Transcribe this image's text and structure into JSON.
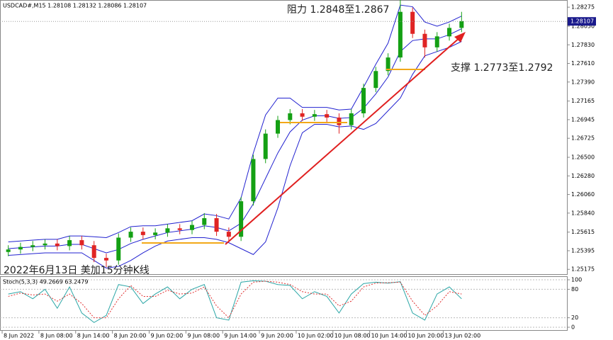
{
  "chart_data": [
    {
      "type": "candlestick",
      "title": "USDCAD#,M15 1.28108 1.28132 1.28086 1.28107",
      "annotations": [
        "阻力 1.2848至1.2867",
        "支撑 1.2773至1.2792",
        "2022年6月13日 美加15分钟K线"
      ],
      "x": [
        1,
        3,
        5,
        7,
        9,
        11,
        13,
        15,
        17,
        19,
        21,
        23,
        25,
        27,
        29,
        31,
        33,
        35,
        37,
        39,
        41,
        43,
        45,
        47,
        49,
        51,
        53,
        55,
        57,
        59,
        61,
        63,
        65,
        67,
        69,
        71,
        73,
        75
      ],
      "open": [
        1.2538,
        1.2541,
        1.2544,
        1.2546,
        1.2548,
        1.2545,
        1.2552,
        1.2546,
        1.2531,
        1.2528,
        1.2555,
        1.2562,
        1.2558,
        1.2561,
        1.2566,
        1.2564,
        1.257,
        1.2578,
        1.2562,
        1.2556,
        1.2598,
        1.2648,
        1.2678,
        1.2694,
        1.2702,
        1.2698,
        1.2701,
        1.2697,
        1.2688,
        1.2702,
        1.2732,
        1.2752,
        1.2768,
        1.2822,
        1.2796,
        1.278,
        1.2793,
        1.2803
      ],
      "high": [
        1.2546,
        1.2549,
        1.2551,
        1.2553,
        1.2553,
        1.2557,
        1.2557,
        1.2551,
        1.2536,
        1.256,
        1.2567,
        1.2567,
        1.2566,
        1.2571,
        1.2571,
        1.2575,
        1.2584,
        1.2583,
        1.2567,
        1.2603,
        1.2653,
        1.2683,
        1.2699,
        1.2707,
        1.2707,
        1.2706,
        1.2706,
        1.2702,
        1.2707,
        1.2737,
        1.2757,
        1.2773,
        1.284,
        1.2827,
        1.2801,
        1.2798,
        1.2808,
        1.2822
      ],
      "low": [
        1.2533,
        1.2536,
        1.2539,
        1.2541,
        1.254,
        1.254,
        1.2541,
        1.2526,
        1.252,
        1.2523,
        1.255,
        1.2553,
        1.2553,
        1.2556,
        1.2559,
        1.2559,
        1.2565,
        1.2557,
        1.255,
        1.2551,
        1.2593,
        1.2643,
        1.2673,
        1.2689,
        1.2693,
        1.2693,
        1.2692,
        1.2678,
        1.2683,
        1.2697,
        1.2727,
        1.2747,
        1.2763,
        1.2791,
        1.2768,
        1.2775,
        1.2788,
        1.2798
      ],
      "close": [
        1.2541,
        1.2544,
        1.2546,
        1.2548,
        1.2545,
        1.2552,
        1.2546,
        1.2531,
        1.2528,
        1.2555,
        1.2562,
        1.2558,
        1.2561,
        1.2566,
        1.2564,
        1.257,
        1.2578,
        1.2562,
        1.2556,
        1.2598,
        1.2648,
        1.2678,
        1.2694,
        1.2702,
        1.2698,
        1.2701,
        1.2697,
        1.2688,
        1.2702,
        1.2732,
        1.2752,
        1.2768,
        1.2822,
        1.2796,
        1.278,
        1.2793,
        1.2803,
        1.2811
      ],
      "up_color": "#14a014",
      "down_color": "#e02424",
      "bands": {
        "color": "#2222d0",
        "upper": [
          1.255,
          1.2551,
          1.2552,
          1.2553,
          1.2553,
          1.2557,
          1.2557,
          1.2556,
          1.2555,
          1.2561,
          1.2568,
          1.2569,
          1.2569,
          1.2571,
          1.2573,
          1.2575,
          1.2583,
          1.2581,
          1.2577,
          1.2602,
          1.2655,
          1.27,
          1.272,
          1.272,
          1.2709,
          1.2709,
          1.2709,
          1.2706,
          1.2707,
          1.2733,
          1.276,
          1.2785,
          1.283,
          1.2828,
          1.281,
          1.2805,
          1.281,
          1.2817
        ],
        "middle": [
          1.2542,
          1.2543,
          1.2544,
          1.2545,
          1.2545,
          1.2547,
          1.2547,
          1.2542,
          1.2537,
          1.2541,
          1.2548,
          1.2553,
          1.2557,
          1.2561,
          1.2563,
          1.2565,
          1.2569,
          1.2567,
          1.2563,
          1.2572,
          1.2595,
          1.2625,
          1.2655,
          1.268,
          1.2694,
          1.2699,
          1.2699,
          1.2696,
          1.2697,
          1.2708,
          1.2725,
          1.2745,
          1.2775,
          1.2788,
          1.279,
          1.279,
          1.2795,
          1.2802
        ],
        "lower": [
          1.2534,
          1.2535,
          1.2536,
          1.2537,
          1.2537,
          1.2537,
          1.2537,
          1.2528,
          1.2519,
          1.2521,
          1.2528,
          1.2537,
          1.2545,
          1.2551,
          1.2553,
          1.2555,
          1.2555,
          1.2553,
          1.2549,
          1.2542,
          1.2535,
          1.255,
          1.259,
          1.264,
          1.2679,
          1.2689,
          1.2689,
          1.2686,
          1.2687,
          1.2683,
          1.269,
          1.2705,
          1.272,
          1.2748,
          1.277,
          1.2775,
          1.278,
          1.2787
        ]
      },
      "last_price": 1.28107,
      "xlim": [
        -0.35,
        92.2
      ],
      "xticks": [
        {
          "value": 0,
          "label": "8 Jun 2022"
        },
        {
          "value": 6,
          "label": "8 Jun 08:00"
        },
        {
          "value": 12,
          "label": "8 Jun 14:00"
        },
        {
          "value": 18,
          "label": "8 Jun 20:00"
        },
        {
          "value": 24,
          "label": "9 Jun 02:00"
        },
        {
          "value": 30,
          "label": "9 Jun 08:00"
        },
        {
          "value": 36,
          "label": "9 Jun 14:00"
        },
        {
          "value": 42,
          "label": "9 Jun 20:00"
        },
        {
          "value": 48,
          "label": "10 Jun 02:00"
        },
        {
          "value": 54,
          "label": "10 Jun 08:00"
        },
        {
          "value": 60,
          "label": "10 Jun 14:00"
        },
        {
          "value": 66,
          "label": "10 Jun 20:00"
        },
        {
          "value": 72,
          "label": "13 Jun 02:00"
        }
      ],
      "ylim": [
        1.2511,
        1.2836
      ],
      "yticks": [
        1.28275,
        {
          "value": 1.2805,
          "label": "1.28050"
        },
        {
          "value": 1.2783,
          "label": "1.27830"
        },
        {
          "value": 1.2761,
          "label": "1.27610"
        },
        {
          "value": 1.2739,
          "label": "1.27390"
        },
        1.27165,
        1.26945,
        1.26725,
        {
          "value": 1.265,
          "label": "1.26500"
        },
        {
          "value": 1.2628,
          "label": "1.26280"
        },
        {
          "value": 1.2606,
          "label": "1.26060"
        },
        {
          "value": 1.2584,
          "label": "1.25840"
        },
        1.25615,
        1.25395,
        1.25175
      ]
    },
    {
      "type": "line",
      "title": "Stoch(5,3,3) 49.2669 63.2479",
      "x": [
        1,
        3,
        5,
        7,
        9,
        11,
        13,
        15,
        17,
        19,
        21,
        23,
        25,
        27,
        29,
        31,
        33,
        35,
        37,
        39,
        41,
        43,
        45,
        47,
        49,
        51,
        53,
        55,
        57,
        59,
        61,
        63,
        65,
        67,
        69,
        71,
        73,
        75
      ],
      "series": [
        {
          "color": "#2aa6a6",
          "dashed": false,
          "values": [
            70,
            75,
            60,
            80,
            40,
            85,
            30,
            10,
            25,
            90,
            85,
            50,
            70,
            85,
            60,
            80,
            90,
            20,
            15,
            95,
            98,
            97,
            90,
            88,
            60,
            75,
            65,
            30,
            70,
            92,
            95,
            93,
            96,
            30,
            15,
            70,
            85,
            60
          ]
        },
        {
          "color": "#e03030",
          "dashed": true,
          "values": [
            65,
            72,
            68,
            70,
            55,
            70,
            50,
            20,
            20,
            60,
            88,
            65,
            65,
            78,
            70,
            72,
            85,
            45,
            20,
            70,
            95,
            97,
            95,
            90,
            75,
            70,
            70,
            45,
            55,
            85,
            93,
            94,
            95,
            55,
            25,
            45,
            75,
            70
          ]
        }
      ],
      "xlim": [
        -0.35,
        92.2
      ],
      "ylim": [
        0,
        100
      ],
      "yticks": [
        100,
        80,
        20,
        0
      ]
    }
  ]
}
